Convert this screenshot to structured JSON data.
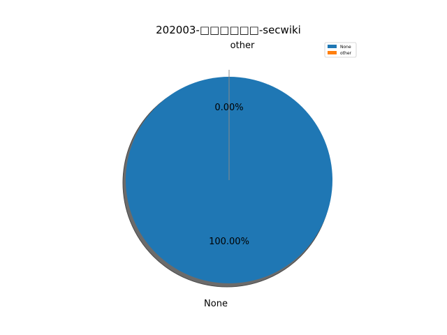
{
  "chart_data": {
    "type": "pie",
    "title": "202003-□□□□□□-secwiki",
    "categories": [
      "None",
      "other"
    ],
    "values": [
      100.0,
      0.0
    ],
    "percent_labels": [
      "100.00%",
      "0.00%"
    ],
    "colors": [
      "#1f77b4",
      "#ff7f0e"
    ],
    "shadow": true,
    "legend_position": "top-right",
    "legend": [
      "None",
      "other"
    ]
  }
}
